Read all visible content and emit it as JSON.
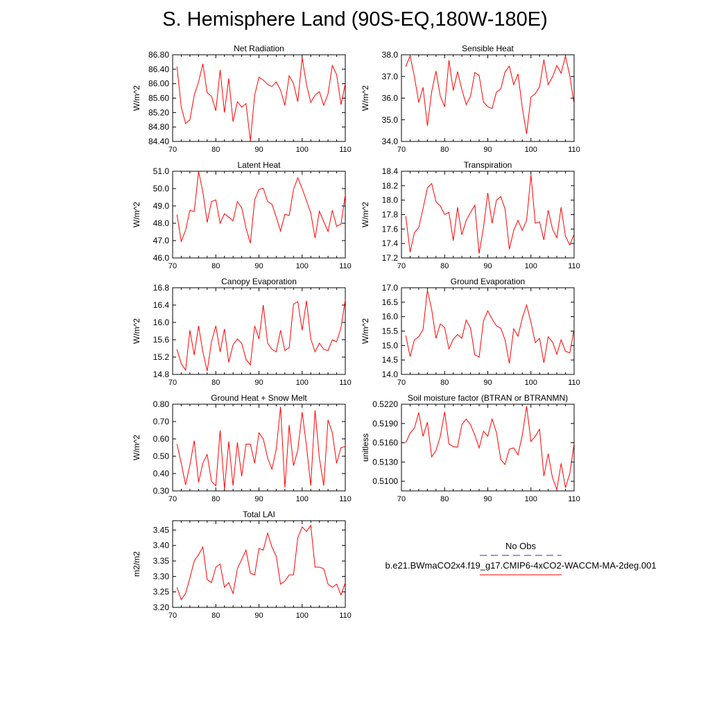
{
  "title": "S. Hemisphere Land (90S-EQ,180W-180E)",
  "colors": {
    "model_line": "#ff0000",
    "obs_line": "#3030a0",
    "axis": "#000000"
  },
  "legend": {
    "obs_label": "No Obs",
    "case_label": "b.e21.BWmaCO2x4.f19_g17.CMIP6-4xCO2-WACCM-MA-2deg.001"
  },
  "chart_data": [
    {
      "type": "line",
      "title": "Net Radiation",
      "ylabel": "W/m^2",
      "xlim": [
        70,
        110
      ],
      "ylim": [
        84.4,
        86.8
      ],
      "xticks": [
        70,
        80,
        90,
        100,
        110
      ],
      "xtick_labels": [
        "70",
        "80",
        "90",
        "100",
        "110"
      ],
      "yticks": [
        84.4,
        84.8,
        85.2,
        85.6,
        86.0,
        86.4,
        86.8
      ],
      "ytick_labels": [
        "84.40",
        "84.80",
        "85.20",
        "85.60",
        "86.00",
        "86.40",
        "86.80"
      ],
      "x": [
        71,
        72,
        73,
        74,
        75,
        76,
        77,
        78,
        79,
        80,
        81,
        82,
        83,
        84,
        85,
        86,
        87,
        88,
        89,
        90,
        91,
        92,
        93,
        94,
        95,
        96,
        97,
        98,
        99,
        100,
        101,
        102,
        103,
        104,
        105,
        106,
        107,
        108,
        109,
        110
      ],
      "values": [
        86.48,
        85.35,
        84.9,
        85.0,
        85.68,
        86.05,
        86.55,
        85.75,
        85.65,
        85.25,
        86.38,
        85.2,
        86.15,
        84.95,
        85.5,
        85.35,
        85.45,
        84.42,
        85.68,
        86.18,
        86.1,
        85.98,
        85.92,
        86.05,
        85.82,
        85.4,
        86.22,
        86.0,
        85.5,
        86.72,
        85.98,
        85.48,
        85.68,
        85.78,
        85.4,
        85.72,
        86.5,
        86.25,
        85.42,
        86.0
      ]
    },
    {
      "type": "line",
      "title": "Sensible Heat",
      "ylabel": "W/m^2",
      "xlim": [
        70,
        110
      ],
      "ylim": [
        34.0,
        38.0
      ],
      "xticks": [
        70,
        80,
        90,
        100,
        110
      ],
      "xtick_labels": [
        "70",
        "80",
        "90",
        "100",
        "110"
      ],
      "yticks": [
        34.0,
        35.0,
        36.0,
        37.0,
        38.0
      ],
      "ytick_labels": [
        "34.0",
        "35.0",
        "36.0",
        "37.0",
        "38.0"
      ],
      "x": [
        71,
        72,
        73,
        74,
        75,
        76,
        77,
        78,
        79,
        80,
        81,
        82,
        83,
        84,
        85,
        86,
        87,
        88,
        89,
        90,
        91,
        92,
        93,
        94,
        95,
        96,
        97,
        98,
        99,
        100,
        101,
        102,
        103,
        104,
        105,
        106,
        107,
        108,
        109,
        110
      ],
      "values": [
        37.45,
        37.95,
        37.0,
        35.8,
        36.5,
        34.72,
        36.3,
        37.25,
        36.1,
        35.6,
        37.75,
        36.35,
        37.22,
        36.4,
        35.7,
        36.08,
        37.18,
        37.05,
        35.82,
        35.6,
        35.52,
        36.28,
        36.42,
        37.2,
        37.48,
        36.62,
        37.12,
        35.55,
        34.35,
        36.05,
        36.2,
        36.52,
        37.78,
        36.62,
        36.98,
        37.5,
        37.15,
        37.95,
        37.02,
        35.72
      ]
    },
    {
      "type": "line",
      "title": "Latent Heat",
      "ylabel": "W/m^2",
      "xlim": [
        70,
        110
      ],
      "ylim": [
        46.0,
        51.0
      ],
      "xticks": [
        70,
        80,
        90,
        100,
        110
      ],
      "xtick_labels": [
        "70",
        "80",
        "90",
        "100",
        "110"
      ],
      "yticks": [
        46.0,
        47.0,
        48.0,
        49.0,
        50.0,
        51.0
      ],
      "ytick_labels": [
        "46.0",
        "47.0",
        "48.0",
        "49.0",
        "50.0",
        "51.0"
      ],
      "x": [
        71,
        72,
        73,
        74,
        75,
        76,
        77,
        78,
        79,
        80,
        81,
        82,
        83,
        84,
        85,
        86,
        87,
        88,
        89,
        90,
        91,
        92,
        93,
        94,
        95,
        96,
        97,
        98,
        99,
        100,
        101,
        102,
        103,
        104,
        105,
        106,
        107,
        108,
        109,
        110
      ],
      "values": [
        48.5,
        46.95,
        47.6,
        48.75,
        48.68,
        50.98,
        49.8,
        48.05,
        49.25,
        49.35,
        48.0,
        48.55,
        48.35,
        48.15,
        49.25,
        48.9,
        47.72,
        46.85,
        49.35,
        49.95,
        50.02,
        49.25,
        49.1,
        48.35,
        47.55,
        48.52,
        48.45,
        49.95,
        50.62,
        50.0,
        49.3,
        48.6,
        47.15,
        48.7,
        48.1,
        47.52,
        48.75,
        47.82,
        47.95,
        49.65
      ]
    },
    {
      "type": "line",
      "title": "Transpiration",
      "ylabel": "W/m^2",
      "xlim": [
        70,
        110
      ],
      "ylim": [
        17.2,
        18.4
      ],
      "xticks": [
        70,
        80,
        90,
        100,
        110
      ],
      "xtick_labels": [
        "70",
        "80",
        "90",
        "100",
        "110"
      ],
      "yticks": [
        17.2,
        17.4,
        17.6,
        17.8,
        18.0,
        18.2,
        18.4
      ],
      "ytick_labels": [
        "17.2",
        "17.4",
        "17.6",
        "17.8",
        "18.0",
        "18.2",
        "18.4"
      ],
      "x": [
        71,
        72,
        73,
        74,
        75,
        76,
        77,
        78,
        79,
        80,
        81,
        82,
        83,
        84,
        85,
        86,
        87,
        88,
        89,
        90,
        91,
        92,
        93,
        94,
        95,
        96,
        97,
        98,
        99,
        100,
        101,
        102,
        103,
        104,
        105,
        106,
        107,
        108,
        109,
        110
      ],
      "values": [
        17.78,
        17.28,
        17.55,
        17.62,
        17.88,
        18.17,
        18.23,
        17.98,
        17.92,
        17.8,
        17.83,
        17.44,
        17.9,
        17.52,
        17.72,
        17.83,
        17.93,
        17.26,
        17.62,
        18.1,
        17.68,
        18.0,
        18.05,
        17.88,
        17.32,
        17.58,
        17.72,
        17.58,
        17.72,
        18.35,
        17.68,
        17.7,
        17.45,
        17.86,
        17.6,
        17.48,
        17.9,
        17.5,
        17.38,
        17.53
      ]
    },
    {
      "type": "line",
      "title": "Canopy Evaporation",
      "ylabel": "W/m^2",
      "xlim": [
        70,
        110
      ],
      "ylim": [
        14.8,
        16.8
      ],
      "xticks": [
        70,
        80,
        90,
        100,
        110
      ],
      "xtick_labels": [
        "70",
        "80",
        "90",
        "100",
        "110"
      ],
      "yticks": [
        14.8,
        15.2,
        15.6,
        16.0,
        16.4,
        16.8
      ],
      "ytick_labels": [
        "14.8",
        "15.2",
        "15.6",
        "16.0",
        "16.4",
        "16.8"
      ],
      "x": [
        71,
        72,
        73,
        74,
        75,
        76,
        77,
        78,
        79,
        80,
        81,
        82,
        83,
        84,
        85,
        86,
        87,
        88,
        89,
        90,
        91,
        92,
        93,
        94,
        95,
        96,
        97,
        98,
        99,
        100,
        101,
        102,
        103,
        104,
        105,
        106,
        107,
        108,
        109,
        110
      ],
      "values": [
        15.38,
        15.05,
        14.9,
        15.82,
        15.25,
        15.92,
        15.32,
        14.88,
        15.55,
        15.92,
        15.32,
        15.85,
        15.08,
        15.48,
        15.62,
        15.52,
        15.15,
        15.02,
        15.92,
        15.62,
        16.4,
        15.52,
        15.38,
        15.32,
        15.82,
        15.35,
        15.42,
        16.42,
        16.48,
        15.82,
        16.5,
        15.62,
        15.32,
        15.52,
        15.38,
        15.35,
        15.6,
        15.55,
        15.88,
        16.52
      ]
    },
    {
      "type": "line",
      "title": "Ground Evaporation",
      "ylabel": "W/m^2",
      "xlim": [
        70,
        110
      ],
      "ylim": [
        14.0,
        17.0
      ],
      "xticks": [
        70,
        80,
        90,
        100,
        110
      ],
      "xtick_labels": [
        "70",
        "80",
        "90",
        "100",
        "110"
      ],
      "yticks": [
        14.0,
        14.5,
        15.0,
        15.5,
        16.0,
        16.5,
        17.0
      ],
      "ytick_labels": [
        "14.0",
        "14.5",
        "15.0",
        "15.5",
        "16.0",
        "16.5",
        "17.0"
      ],
      "x": [
        71,
        72,
        73,
        74,
        75,
        76,
        77,
        78,
        79,
        80,
        81,
        82,
        83,
        84,
        85,
        86,
        87,
        88,
        89,
        90,
        91,
        92,
        93,
        94,
        95,
        96,
        97,
        98,
        99,
        100,
        101,
        102,
        103,
        104,
        105,
        106,
        107,
        108,
        109,
        110
      ],
      "values": [
        15.35,
        14.62,
        15.2,
        15.3,
        15.55,
        16.92,
        16.25,
        15.25,
        15.75,
        15.62,
        14.88,
        15.22,
        15.38,
        15.25,
        15.88,
        15.6,
        14.68,
        14.6,
        15.85,
        16.2,
        15.92,
        15.68,
        15.6,
        15.2,
        14.38,
        15.58,
        15.32,
        15.95,
        16.4,
        15.8,
        15.1,
        15.25,
        14.4,
        15.3,
        15.12,
        14.7,
        15.2,
        14.8,
        14.75,
        15.58
      ]
    },
    {
      "type": "line",
      "title": "Ground Heat + Snow Melt",
      "ylabel": "W/m^2",
      "xlim": [
        70,
        110
      ],
      "ylim": [
        0.3,
        0.8
      ],
      "xticks": [
        70,
        80,
        90,
        100,
        110
      ],
      "xtick_labels": [
        "70",
        "80",
        "90",
        "100",
        "110"
      ],
      "yticks": [
        0.3,
        0.4,
        0.5,
        0.6,
        0.7,
        0.8
      ],
      "ytick_labels": [
        "0.30",
        "0.40",
        "0.50",
        "0.60",
        "0.70",
        "0.80"
      ],
      "x": [
        71,
        72,
        73,
        74,
        75,
        76,
        77,
        78,
        79,
        80,
        81,
        82,
        83,
        84,
        85,
        86,
        87,
        88,
        89,
        90,
        91,
        92,
        93,
        94,
        95,
        96,
        97,
        98,
        99,
        100,
        101,
        102,
        103,
        104,
        105,
        106,
        107,
        108,
        109,
        110
      ],
      "values": [
        0.57,
        0.46,
        0.335,
        0.45,
        0.59,
        0.35,
        0.46,
        0.51,
        0.355,
        0.33,
        0.65,
        0.31,
        0.585,
        0.33,
        0.58,
        0.385,
        0.57,
        0.57,
        0.46,
        0.635,
        0.6,
        0.49,
        0.425,
        0.54,
        0.785,
        0.32,
        0.68,
        0.445,
        0.535,
        0.755,
        0.56,
        0.33,
        0.765,
        0.49,
        0.33,
        0.71,
        0.635,
        0.46,
        0.55,
        0.555
      ]
    },
    {
      "type": "line",
      "title": "Soil moisture factor (BTRAN or BTRANMN)",
      "ylabel": "unitless",
      "xlim": [
        70,
        110
      ],
      "ylim": [
        0.5085,
        0.522
      ],
      "xticks": [
        70,
        80,
        90,
        100,
        110
      ],
      "xtick_labels": [
        "70",
        "80",
        "90",
        "100",
        "110"
      ],
      "yticks": [
        0.51,
        0.513,
        0.516,
        0.519,
        0.522
      ],
      "ytick_labels": [
        "0.5100",
        "0.5130",
        "0.5160",
        "0.5190",
        "0.5220"
      ],
      "x": [
        71,
        72,
        73,
        74,
        75,
        76,
        77,
        78,
        79,
        80,
        81,
        82,
        83,
        84,
        85,
        86,
        87,
        88,
        89,
        90,
        91,
        92,
        93,
        94,
        95,
        96,
        97,
        98,
        99,
        100,
        101,
        102,
        103,
        104,
        105,
        106,
        107,
        108,
        109,
        110
      ],
      "values": [
        0.516,
        0.5175,
        0.5183,
        0.5207,
        0.517,
        0.5192,
        0.5138,
        0.5148,
        0.517,
        0.5208,
        0.5158,
        0.5154,
        0.5153,
        0.5188,
        0.5197,
        0.5188,
        0.5172,
        0.5152,
        0.5178,
        0.517,
        0.5197,
        0.5176,
        0.5134,
        0.5126,
        0.515,
        0.5152,
        0.5141,
        0.5172,
        0.5217,
        0.5162,
        0.517,
        0.5181,
        0.5108,
        0.5143,
        0.5105,
        0.5087,
        0.5128,
        0.509,
        0.5112,
        0.5159
      ]
    },
    {
      "type": "line",
      "title": "Total LAI",
      "ylabel": "m2/m2",
      "xlim": [
        70,
        110
      ],
      "ylim": [
        3.2,
        3.48
      ],
      "xticks": [
        70,
        80,
        90,
        100,
        110
      ],
      "xtick_labels": [
        "70",
        "80",
        "90",
        "100",
        "110"
      ],
      "yticks": [
        3.2,
        3.25,
        3.3,
        3.35,
        3.4,
        3.45
      ],
      "ytick_labels": [
        "3.20",
        "3.25",
        "3.30",
        "3.35",
        "3.40",
        "3.45"
      ],
      "x": [
        71,
        72,
        73,
        74,
        75,
        76,
        77,
        78,
        79,
        80,
        81,
        82,
        83,
        84,
        85,
        86,
        87,
        88,
        89,
        90,
        91,
        92,
        93,
        94,
        95,
        96,
        97,
        98,
        99,
        100,
        101,
        102,
        103,
        104,
        105,
        106,
        107,
        108,
        109,
        110
      ],
      "values": [
        3.265,
        3.225,
        3.245,
        3.295,
        3.35,
        3.37,
        3.395,
        3.29,
        3.28,
        3.33,
        3.34,
        3.265,
        3.28,
        3.245,
        3.325,
        3.355,
        3.385,
        3.31,
        3.305,
        3.39,
        3.385,
        3.44,
        3.395,
        3.365,
        3.275,
        3.285,
        3.305,
        3.305,
        3.425,
        3.46,
        3.445,
        3.465,
        3.33,
        3.33,
        3.325,
        3.275,
        3.265,
        3.275,
        3.24,
        3.28
      ]
    }
  ]
}
